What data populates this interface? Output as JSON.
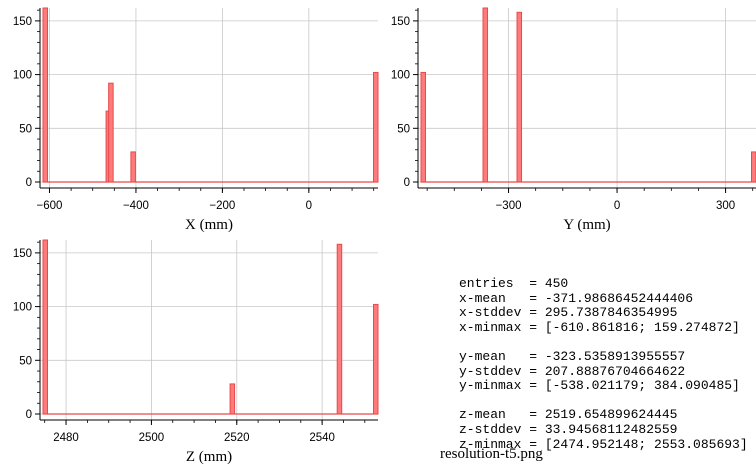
{
  "chart_data": [
    {
      "type": "bar",
      "panel": "x",
      "xlabel": "X (mm)",
      "xlim": [
        -615,
        160
      ],
      "ylim": [
        0,
        162
      ],
      "xticks": [
        -600,
        -400,
        -200,
        0
      ],
      "yticks": [
        0,
        50,
        100,
        150
      ],
      "bin_width": 7.75,
      "bars": [
        {
          "x": -610.86,
          "y": 162
        },
        {
          "x": -464.5,
          "y": 66
        },
        {
          "x": -458.5,
          "y": 92
        },
        {
          "x": -407.0,
          "y": 28
        },
        {
          "x": 155.4,
          "y": 102
        }
      ],
      "grid": true
    },
    {
      "type": "bar",
      "panel": "y",
      "xlabel": "Y (mm)",
      "ylim": [
        0,
        162
      ],
      "xlim": [
        -542,
        384.09
      ],
      "xticks": [
        -300,
        0,
        300
      ],
      "yticks": [
        0,
        50,
        100,
        150
      ],
      "bin_width": 9.2,
      "bars": [
        {
          "x": -538.02,
          "y": 102
        },
        {
          "x": -365.0,
          "y": 162
        },
        {
          "x": -271.0,
          "y": 158
        },
        {
          "x": 379.5,
          "y": 28
        }
      ],
      "grid": true
    },
    {
      "type": "bar",
      "panel": "z",
      "xlabel": "Z (mm)",
      "ylim": [
        0,
        162
      ],
      "xlim": [
        2474.6,
        2553.09
      ],
      "xticks": [
        2480,
        2500,
        2520,
        2540
      ],
      "yticks": [
        0,
        50,
        100,
        150
      ],
      "bin_width": 0.8,
      "bars": [
        {
          "x": 2474.95,
          "y": 162
        },
        {
          "x": 2518.9,
          "y": 28
        },
        {
          "x": 2544.0,
          "y": 158
        },
        {
          "x": 2552.69,
          "y": 102
        }
      ],
      "grid": true
    }
  ],
  "stats": {
    "entries": "entries  = 450",
    "x_mean": "x-mean   = -371.98686452444406",
    "x_stddev": "x-stddev = 295.7387846354995",
    "x_minmax": "x-minmax = [-610.861816; 159.274872]",
    "y_mean": "y-mean   = -323.5358913955557",
    "y_stddev": "y-stddev = 207.88876704664622",
    "y_minmax": "y-minmax = [-538.021179; 384.090485]",
    "z_mean": "z-mean   = 2519.654899624445",
    "z_stddev": "z-stddev = 33.94568112482559",
    "z_minmax": "z-minmax = [2474.952148; 2553.085693]"
  },
  "caption": "resolution-t5.png",
  "colors": {
    "bar_fill": "#ff7b7b",
    "bar_edge": "#e84a4a",
    "grid": "#c8c8c8",
    "axis": "#000000"
  }
}
